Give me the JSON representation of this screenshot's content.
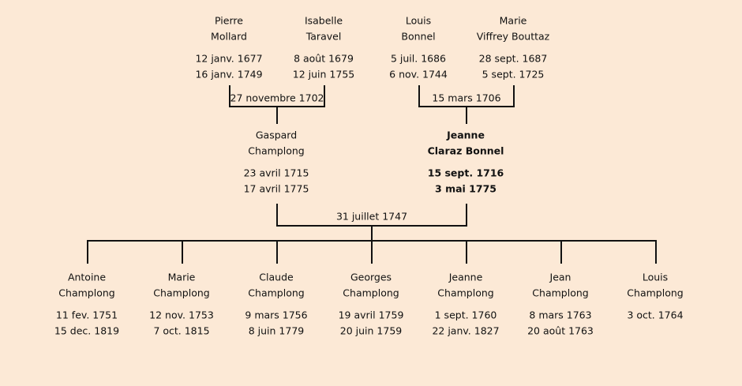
{
  "grandparents": [
    {
      "first": "Pierre",
      "last": "Mollard",
      "birth": "12 janv. 1677",
      "death": "16 janv. 1749"
    },
    {
      "first": "Isabelle",
      "last": "Taravel",
      "birth": "8 août 1679",
      "death": "12 juin 1755"
    },
    {
      "first": "Louis",
      "last": "Bonnel",
      "birth": "5 juil. 1686",
      "death": "6 nov. 1744"
    },
    {
      "first": "Marie",
      "last": "Viffrey Bouttaz",
      "birth": "28 sept. 1687",
      "death": "5 sept. 1725"
    }
  ],
  "grandparent_marriages": [
    "27 novembre 1702",
    "15 mars 1706"
  ],
  "parents": [
    {
      "first": "Gaspard",
      "last": "Champlong",
      "birth": "23 avril 1715",
      "death": "17 avril 1775"
    },
    {
      "first": "Jeanne",
      "last": "Claraz Bonnel",
      "birth": "15 sept. 1716",
      "death": "3 mai 1775"
    }
  ],
  "parent_marriage": "31 juillet 1747",
  "children": [
    {
      "first": "Antoine",
      "last": "Champlong",
      "birth": "11 fev. 1751",
      "death": "15 dec. 1819"
    },
    {
      "first": "Marie",
      "last": "Champlong",
      "birth": "12 nov. 1753",
      "death": "7 oct. 1815"
    },
    {
      "first": "Claude",
      "last": "Champlong",
      "birth": "9 mars 1756",
      "death": "8 juin 1779"
    },
    {
      "first": "Georges",
      "last": "Champlong",
      "birth": "19 avril 1759",
      "death": "20 juin 1759"
    },
    {
      "first": "Jeanne",
      "last": "Champlong",
      "birth": "1 sept. 1760",
      "death": "22 janv. 1827"
    },
    {
      "first": "Jean",
      "last": "Champlong",
      "birth": "8 mars 1763",
      "death": "20 août 1763"
    },
    {
      "first": "Louis",
      "last": "Champlong",
      "birth": "3 oct. 1764"
    }
  ]
}
